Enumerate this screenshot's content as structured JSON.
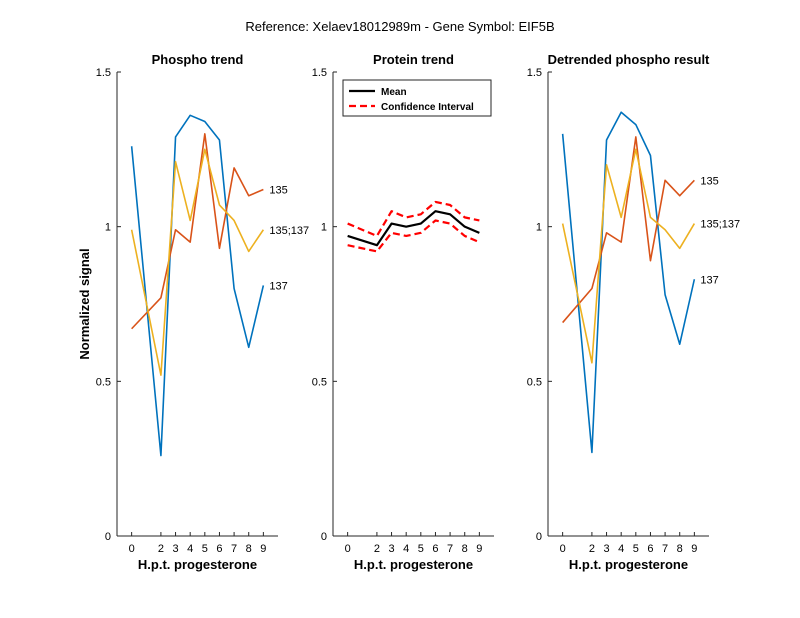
{
  "figure": {
    "title": "Reference:  Xelaev18012989m - Gene Symbol:  EIF5B"
  },
  "colors": {
    "c137": "#0072BD",
    "c135": "#D95319",
    "c135_137": "#EDB120",
    "mean": "#000000",
    "ci": "#FF0000"
  },
  "chart_data": [
    {
      "type": "line",
      "title": "Phospho trend",
      "xlabel": "H.p.t. progesterone",
      "ylabel": "Normalized signal",
      "x": [
        0,
        2,
        3,
        4,
        5,
        6,
        7,
        8,
        9
      ],
      "xlim": [
        -1,
        10
      ],
      "ylim": [
        0,
        1.5
      ],
      "yticks": [
        0,
        0.5,
        1,
        1.5
      ],
      "ytick_labels": [
        "0",
        "0.5",
        "1",
        "1.5"
      ],
      "series": [
        {
          "name": "137",
          "color_key": "c137",
          "values": [
            1.26,
            0.26,
            1.29,
            1.36,
            1.34,
            1.28,
            0.8,
            0.61,
            0.81
          ]
        },
        {
          "name": "135",
          "color_key": "c135",
          "values": [
            0.67,
            0.77,
            0.99,
            0.95,
            1.3,
            0.93,
            1.19,
            1.1,
            1.12
          ]
        },
        {
          "name": "135;137",
          "color_key": "c135_137",
          "values": [
            0.99,
            0.52,
            1.21,
            1.02,
            1.25,
            1.07,
            1.02,
            0.92,
            0.99
          ]
        }
      ]
    },
    {
      "type": "line",
      "title": "Protein trend",
      "xlabel": "H.p.t. progesterone",
      "x": [
        0,
        2,
        3,
        4,
        5,
        6,
        7,
        8,
        9
      ],
      "xlim": [
        -1,
        10
      ],
      "ylim": [
        0,
        1.5
      ],
      "yticks": [
        0,
        0.5,
        1,
        1.5
      ],
      "ytick_labels": [
        "0",
        "0.5",
        "1",
        "1.5"
      ],
      "legend": [
        "Mean",
        "Confidence Interval"
      ],
      "legend_position": "top-right",
      "series": [
        {
          "name": "Mean",
          "color_key": "mean",
          "style": "solid",
          "values": [
            0.97,
            0.94,
            1.01,
            1.0,
            1.01,
            1.05,
            1.04,
            1.0,
            0.98
          ]
        },
        {
          "name": "Confidence Interval",
          "color_key": "ci",
          "style": "dashed",
          "values": [
            1.01,
            0.97,
            1.05,
            1.03,
            1.04,
            1.08,
            1.07,
            1.03,
            1.02
          ]
        },
        {
          "name": "Confidence Interval",
          "color_key": "ci",
          "style": "dashed",
          "values": [
            0.94,
            0.92,
            0.98,
            0.97,
            0.98,
            1.02,
            1.01,
            0.97,
            0.95
          ]
        }
      ]
    },
    {
      "type": "line",
      "title": "Detrended phospho result",
      "xlabel": "H.p.t. progesterone",
      "x": [
        0,
        2,
        3,
        4,
        5,
        6,
        7,
        8,
        9
      ],
      "xlim": [
        -1,
        10
      ],
      "ylim": [
        0,
        1.5
      ],
      "yticks": [
        0,
        0.5,
        1,
        1.5
      ],
      "ytick_labels": [
        "0",
        "0.5",
        "1",
        "1.5"
      ],
      "series": [
        {
          "name": "137",
          "color_key": "c137",
          "values": [
            1.3,
            0.27,
            1.28,
            1.37,
            1.33,
            1.23,
            0.78,
            0.62,
            0.83
          ]
        },
        {
          "name": "135",
          "color_key": "c135",
          "values": [
            0.69,
            0.8,
            0.98,
            0.95,
            1.29,
            0.89,
            1.15,
            1.1,
            1.15
          ]
        },
        {
          "name": "135;137",
          "color_key": "c135_137",
          "values": [
            1.01,
            0.56,
            1.2,
            1.03,
            1.25,
            1.03,
            0.99,
            0.93,
            1.01
          ]
        }
      ]
    }
  ]
}
